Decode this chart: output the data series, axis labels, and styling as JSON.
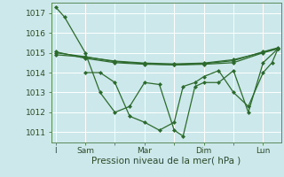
{
  "xlabel": "Pression niveau de la mer( hPa )",
  "background_color": "#cce8ea",
  "grid_color": "#ffffff",
  "line_color": "#2d6a2d",
  "ylim": [
    1010.5,
    1017.5
  ],
  "yticks": [
    1011,
    1012,
    1013,
    1014,
    1015,
    1016,
    1017
  ],
  "xtick_labels": [
    "I",
    "Sam",
    "",
    "Mar",
    "",
    "Dim",
    "",
    "Lun"
  ],
  "xtick_positions": [
    0,
    1,
    2,
    3,
    4,
    5,
    6,
    7
  ],
  "xlim": [
    -0.15,
    7.6
  ],
  "line1_x": [
    0,
    0.3,
    1.0,
    1.5,
    2.0,
    2.5,
    3.0,
    3.5,
    4.0,
    4.3,
    4.7,
    5.0,
    5.5,
    6.0,
    6.5,
    7.0,
    7.5
  ],
  "line1_y": [
    1017.3,
    1016.8,
    1015.0,
    1013.0,
    1012.0,
    1012.3,
    1013.5,
    1013.4,
    1011.1,
    1010.8,
    1013.3,
    1013.5,
    1013.5,
    1014.1,
    1012.0,
    1014.5,
    1015.2
  ],
  "line2_x": [
    0,
    1.0,
    2.0,
    3.0,
    4.0,
    5.0,
    6.0,
    7.0,
    7.5
  ],
  "line2_y": [
    1015.0,
    1014.8,
    1014.55,
    1014.45,
    1014.38,
    1014.42,
    1014.5,
    1015.0,
    1015.2
  ],
  "line3_x": [
    0,
    1.0,
    2.0,
    3.0,
    4.0,
    5.0,
    6.0,
    7.0,
    7.5
  ],
  "line3_y": [
    1015.05,
    1014.72,
    1014.5,
    1014.42,
    1014.4,
    1014.45,
    1014.6,
    1015.05,
    1015.25
  ],
  "line4_x": [
    0,
    1.0,
    2.0,
    3.0,
    4.0,
    5.0,
    6.0,
    7.0,
    7.5
  ],
  "line4_y": [
    1014.9,
    1014.78,
    1014.58,
    1014.48,
    1014.44,
    1014.48,
    1014.65,
    1015.02,
    1015.22
  ],
  "line5_x": [
    1.0,
    1.5,
    2.0,
    2.5,
    3.0,
    3.5,
    4.0,
    4.3,
    4.7,
    5.0,
    5.5,
    6.0,
    6.5,
    7.0,
    7.3,
    7.5
  ],
  "line5_y": [
    1014.0,
    1014.0,
    1013.5,
    1011.8,
    1011.5,
    1011.1,
    1011.5,
    1013.3,
    1013.5,
    1013.8,
    1014.1,
    1013.0,
    1012.3,
    1014.0,
    1014.5,
    1015.2
  ],
  "marker": "D",
  "marker_size": 2.0,
  "linewidth": 0.9
}
